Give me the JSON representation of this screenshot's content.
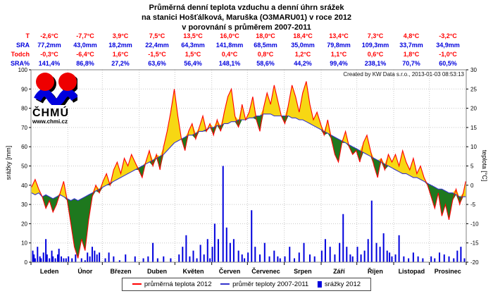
{
  "title": {
    "line1": "Průměrná denní teplota vzduchu a denní úhrn srážek",
    "line2": "na stanici Hošťálková, Maruška (O3MARU01) v roce 2012",
    "line3": "v porovnání s průměrem 2007-2011"
  },
  "created_by": "Created by KW Data s.r.o., 2013-01-03 08:53:13",
  "logo": {
    "name": "ČHMÚ",
    "url_text": "www.chmi.cz"
  },
  "monthly_table": {
    "rows": [
      {
        "label": "T",
        "color": "#ff0000",
        "values": [
          "-2,6°C",
          "-7,7°C",
          "3,9°C",
          "7,5°C",
          "13,5°C",
          "16,0°C",
          "18,0°C",
          "18,4°C",
          "13,4°C",
          "7,3°C",
          "4,8°C",
          "-3,2°C"
        ]
      },
      {
        "label": "SRA",
        "color": "#0000dd",
        "values": [
          "77,2mm",
          "43,0mm",
          "18,2mm",
          "22,4mm",
          "64,3mm",
          "141,8mm",
          "68,5mm",
          "35,0mm",
          "79,8mm",
          "109,3mm",
          "33,7mm",
          "34,9mm"
        ]
      },
      {
        "label": "Todch",
        "color": "#ff0000",
        "values": [
          "-0,3°C",
          "-6,4°C",
          "1,6°C",
          "-1,5°C",
          "1,5°C",
          "0,4°C",
          "0,8°C",
          "1,2°C",
          "1,1°C",
          "0,6°C",
          "1,8°C",
          "-1,0°C"
        ]
      },
      {
        "label": "SRA%",
        "color": "#0000dd",
        "values": [
          "141,4%",
          "86,8%",
          "27,2%",
          "63,6%",
          "56,4%",
          "148,1%",
          "58,6%",
          "44,2%",
          "99,4%",
          "238,1%",
          "70,7%",
          "60,5%"
        ]
      }
    ]
  },
  "legend": {
    "items": [
      {
        "label": "průměrná teplota 2012",
        "type": "line",
        "color": "#ff0000"
      },
      {
        "label": "průměr teploty 2007-2011",
        "type": "line",
        "color": "#3333cc"
      },
      {
        "label": "srážky 2012",
        "type": "bar",
        "color": "#0000dd"
      }
    ]
  },
  "chart_data": {
    "type": "line+bar",
    "title": "Průměrná denní teplota vzduchu a denní úhrn srážek na stanici Hošťálková, Maruška (O3MARU01) v roce 2012 v porovnání s průměrem 2007-2011",
    "x_axis": {
      "month_labels": [
        "Leden",
        "Únor",
        "Březen",
        "Duben",
        "Květen",
        "Červen",
        "Červenec",
        "Srpen",
        "Září",
        "Říjen",
        "Listopad",
        "Prosinec"
      ],
      "month_start_days": [
        1,
        32,
        61,
        92,
        122,
        153,
        183,
        214,
        245,
        275,
        306,
        336,
        367
      ]
    },
    "y_left": {
      "label": "srážky [mm]",
      "min": 0,
      "max": 100,
      "tick_step": 10
    },
    "y_right": {
      "label": "teplota [°C]",
      "min": -20,
      "max": 30,
      "tick_step": 5
    },
    "grid": true,
    "temperature": {
      "sample_days": [
        1,
        4,
        7,
        10,
        13,
        16,
        19,
        22,
        25,
        28,
        31,
        34,
        37,
        40,
        43,
        46,
        49,
        52,
        55,
        58,
        61,
        64,
        67,
        70,
        73,
        76,
        79,
        82,
        85,
        88,
        91,
        94,
        97,
        100,
        103,
        106,
        109,
        112,
        115,
        118,
        121,
        124,
        127,
        130,
        133,
        136,
        139,
        142,
        145,
        148,
        151,
        154,
        157,
        160,
        163,
        166,
        169,
        172,
        175,
        178,
        181,
        184,
        187,
        190,
        193,
        196,
        199,
        202,
        205,
        208,
        211,
        214,
        217,
        220,
        223,
        226,
        229,
        232,
        235,
        238,
        241,
        244,
        247,
        250,
        253,
        256,
        259,
        262,
        265,
        268,
        271,
        274,
        277,
        280,
        283,
        286,
        289,
        292,
        295,
        298,
        301,
        304,
        307,
        310,
        313,
        316,
        319,
        322,
        325,
        328,
        331,
        334,
        337,
        340,
        343,
        346,
        349,
        352,
        355,
        358,
        361,
        364,
        366
      ],
      "t2012": [
        -0.5,
        1.5,
        -1,
        -3,
        -6,
        -4,
        -7,
        -5,
        -2,
        1,
        -4,
        -10,
        -16,
        -19,
        -14,
        -17,
        -9,
        -3,
        0,
        -2,
        1,
        3,
        0,
        4,
        6,
        3,
        7,
        5,
        8,
        6,
        4,
        2,
        6,
        9,
        5,
        8,
        4,
        10,
        14,
        19,
        25,
        18,
        12,
        9,
        14,
        16,
        12,
        15,
        18,
        14,
        16,
        13,
        17,
        14,
        19,
        23,
        25,
        18,
        15,
        21,
        17,
        19,
        23,
        17,
        14,
        20,
        24,
        21,
        26,
        22,
        18,
        16,
        21,
        26,
        23,
        19,
        24,
        27,
        21,
        17,
        19,
        16,
        13,
        17,
        12,
        8,
        6,
        11,
        14,
        10,
        8,
        9,
        6,
        11,
        13,
        9,
        5,
        2,
        7,
        4,
        8,
        6,
        8,
        5,
        9,
        6,
        4,
        7,
        3,
        5,
        2,
        0,
        -3,
        -6,
        -2,
        -8,
        -5,
        -9,
        -4,
        -1,
        -5,
        -2,
        1
      ],
      "avg2007_2011": [
        -2,
        -2.5,
        -2,
        -3,
        -2.5,
        -3,
        -3.5,
        -3,
        -2.5,
        -3,
        -3.5,
        -4,
        -3.5,
        -4,
        -3.5,
        -3,
        -2.5,
        -2,
        -1.5,
        -1,
        -0.5,
        0,
        0.5,
        1,
        1.5,
        2,
        2.5,
        3,
        3.5,
        4,
        4.5,
        5,
        5.5,
        6,
        6.5,
        7,
        7.5,
        8,
        9,
        10,
        11,
        11.5,
        12,
        12.5,
        13,
        13,
        13.5,
        14,
        14,
        14.5,
        15,
        15,
        15.5,
        15.5,
        16,
        16,
        16.5,
        16.5,
        17,
        17,
        17,
        17.5,
        17.5,
        18,
        18,
        18.5,
        18.5,
        18.5,
        18,
        18,
        18,
        18,
        18,
        17.5,
        17.5,
        17,
        17,
        16.5,
        16,
        15.5,
        15,
        14.5,
        14,
        13.5,
        13,
        12.5,
        12,
        11.5,
        11,
        10.5,
        10,
        9.5,
        9,
        8.5,
        8,
        7.5,
        7,
        6.5,
        6,
        5.5,
        5,
        4.5,
        4,
        3.5,
        3,
        3,
        2.5,
        2,
        2,
        1.5,
        1,
        0.5,
        0,
        -0.5,
        -1,
        -1,
        -1.5,
        -2,
        -2,
        -2.5,
        -3,
        -3,
        -3
      ]
    },
    "precipitation_mm_by_day": [
      [
        2,
        6
      ],
      [
        3,
        4
      ],
      [
        4,
        2
      ],
      [
        6,
        8
      ],
      [
        8,
        3
      ],
      [
        9,
        2
      ],
      [
        11,
        5
      ],
      [
        13,
        12
      ],
      [
        14,
        4
      ],
      [
        16,
        2
      ],
      [
        18,
        6
      ],
      [
        19,
        3
      ],
      [
        21,
        2
      ],
      [
        23,
        4
      ],
      [
        24,
        7
      ],
      [
        26,
        3
      ],
      [
        28,
        2
      ],
      [
        30,
        2
      ],
      [
        32,
        3
      ],
      [
        35,
        2
      ],
      [
        38,
        4
      ],
      [
        43,
        2
      ],
      [
        46,
        1
      ],
      [
        48,
        5
      ],
      [
        50,
        3
      ],
      [
        52,
        8
      ],
      [
        54,
        6
      ],
      [
        56,
        4
      ],
      [
        58,
        5
      ],
      [
        63,
        2
      ],
      [
        66,
        5
      ],
      [
        70,
        3
      ],
      [
        75,
        1
      ],
      [
        80,
        4
      ],
      [
        88,
        3
      ],
      [
        95,
        2
      ],
      [
        99,
        3
      ],
      [
        103,
        10
      ],
      [
        107,
        2
      ],
      [
        112,
        3
      ],
      [
        118,
        2
      ],
      [
        125,
        4
      ],
      [
        128,
        8
      ],
      [
        131,
        14
      ],
      [
        134,
        3
      ],
      [
        137,
        6
      ],
      [
        140,
        2
      ],
      [
        143,
        9
      ],
      [
        146,
        4
      ],
      [
        149,
        12
      ],
      [
        151,
        2
      ],
      [
        153,
        8
      ],
      [
        155,
        20
      ],
      [
        158,
        12
      ],
      [
        162,
        50
      ],
      [
        165,
        18
      ],
      [
        168,
        10
      ],
      [
        171,
        12
      ],
      [
        175,
        6
      ],
      [
        178,
        4
      ],
      [
        180,
        2
      ],
      [
        183,
        5
      ],
      [
        186,
        27
      ],
      [
        189,
        8
      ],
      [
        193,
        4
      ],
      [
        197,
        10
      ],
      [
        201,
        3
      ],
      [
        205,
        6
      ],
      [
        208,
        3
      ],
      [
        210,
        2
      ],
      [
        214,
        3
      ],
      [
        218,
        8
      ],
      [
        222,
        2
      ],
      [
        226,
        5
      ],
      [
        230,
        10
      ],
      [
        235,
        4
      ],
      [
        239,
        3
      ],
      [
        245,
        6
      ],
      [
        248,
        12
      ],
      [
        252,
        8
      ],
      [
        256,
        4
      ],
      [
        260,
        10
      ],
      [
        263,
        25
      ],
      [
        266,
        8
      ],
      [
        269,
        4
      ],
      [
        271,
        3
      ],
      [
        275,
        8
      ],
      [
        278,
        4
      ],
      [
        281,
        6
      ],
      [
        284,
        12
      ],
      [
        287,
        32
      ],
      [
        291,
        10
      ],
      [
        294,
        8
      ],
      [
        297,
        15
      ],
      [
        300,
        6
      ],
      [
        302,
        5
      ],
      [
        304,
        3
      ],
      [
        307,
        4
      ],
      [
        310,
        14
      ],
      [
        314,
        3
      ],
      [
        318,
        2
      ],
      [
        322,
        5
      ],
      [
        326,
        3
      ],
      [
        330,
        2
      ],
      [
        337,
        3
      ],
      [
        340,
        2
      ],
      [
        344,
        5
      ],
      [
        348,
        4
      ],
      [
        352,
        3
      ],
      [
        356,
        2
      ],
      [
        359,
        6
      ],
      [
        362,
        8
      ],
      [
        365,
        2
      ]
    ],
    "colors": {
      "t2012_line": "#ff0000",
      "avg_line": "#3333cc",
      "warmer_fill": "#f7d713",
      "colder_fill": "#1e781e",
      "precip_bar": "#0000dd",
      "grid": "#c8c8c8",
      "plot_border": "#808080"
    }
  }
}
